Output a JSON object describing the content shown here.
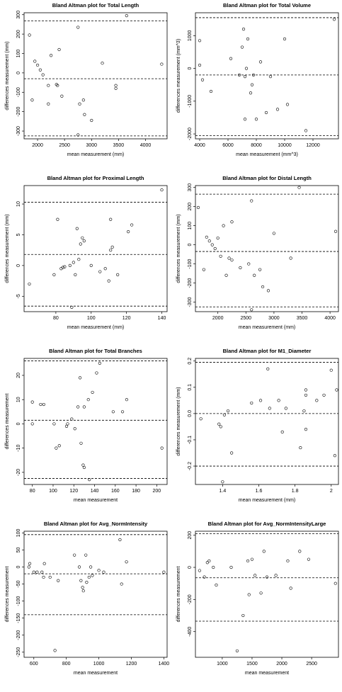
{
  "chart_data": [
    {
      "type": "scatter",
      "title": "Bland Altman plot for Total Length",
      "x_label": "mean measurement (mm)",
      "y_label": "differences measurement (mm)",
      "x": [
        1850,
        1900,
        1950,
        2000,
        2050,
        2100,
        2200,
        2200,
        2250,
        2350,
        2370,
        2400,
        2450,
        2750,
        2750,
        2780,
        2850,
        2870,
        3000,
        3200,
        3450,
        3450,
        3650,
        4300
      ],
      "values": [
        195,
        -140,
        60,
        40,
        15,
        -10,
        -65,
        -160,
        90,
        -60,
        -65,
        120,
        -120,
        235,
        -320,
        -160,
        -140,
        -215,
        -245,
        50,
        -65,
        -80,
        295,
        45
      ],
      "xlim": [
        1750,
        4400
      ],
      "ylim": [
        -340,
        310
      ],
      "xticks": [
        2000,
        2500,
        3000,
        3500,
        4000
      ],
      "yticks": [
        -300,
        -200,
        -100,
        0,
        100,
        200,
        300
      ],
      "hlines": [
        268,
        -30,
        -325
      ]
    },
    {
      "type": "scatter",
      "title": "Bland Altman plot for Total Volume",
      "x_label": "mean measurement (mm^3)",
      "y_label": "differences measurement (mm^3)",
      "x": [
        4000,
        4000,
        4200,
        4800,
        6200,
        6800,
        7000,
        7100,
        7200,
        7300,
        7400,
        7200,
        7600,
        7700,
        8000,
        8300,
        8700,
        9000,
        9500,
        10000,
        10200,
        11500,
        13500,
        7800
      ],
      "values": [
        850,
        100,
        -350,
        -700,
        300,
        -200,
        650,
        1200,
        -250,
        0,
        900,
        -1550,
        -750,
        -500,
        -1550,
        200,
        -1350,
        -250,
        -1250,
        900,
        -1100,
        -1900,
        1500,
        -200
      ],
      "xlim": [
        3700,
        13800
      ],
      "ylim": [
        -2150,
        1700
      ],
      "xticks": [
        4000,
        6000,
        8000,
        10000,
        12000
      ],
      "yticks": [
        -2000,
        -1000,
        0,
        1000
      ],
      "hlines": [
        1550,
        -200,
        -2050
      ]
    },
    {
      "type": "scatter",
      "title": "Bland Altman plot for Proximal Length",
      "x_label": "mean measurement (mm)",
      "y_label": "differences measurement (mm)",
      "x": [
        65,
        79,
        81,
        83,
        84,
        85,
        88,
        89,
        90,
        91,
        92,
        93,
        94,
        95,
        96,
        100,
        105,
        108,
        110,
        111,
        111,
        112,
        115,
        121,
        123,
        140
      ],
      "values": [
        -3,
        -1.5,
        7.5,
        -0.5,
        -0.3,
        -0.2,
        0,
        -6.8,
        0.5,
        -1.5,
        6,
        1,
        3.5,
        4.5,
        4,
        0,
        -1,
        -0.5,
        -2.5,
        2.5,
        7.5,
        3,
        -1.5,
        5.5,
        6.6,
        12.3
      ],
      "xlim": [
        62,
        143
      ],
      "ylim": [
        -7.5,
        13
      ],
      "xticks": [
        80,
        100,
        120,
        140
      ],
      "yticks": [
        -5,
        0,
        5,
        10
      ],
      "hlines": [
        10.3,
        1.8,
        -6.6
      ]
    },
    {
      "type": "scatter",
      "title": "Bland Altman plot for Distal Length",
      "x_label": "mean measurement (mm)",
      "y_label": "differences measurement (mm)",
      "x": [
        1650,
        1750,
        1800,
        1850,
        1900,
        1950,
        2000,
        2050,
        2100,
        2150,
        2200,
        2250,
        2250,
        2400,
        2550,
        2600,
        2600,
        2650,
        2750,
        2800,
        2900,
        3000,
        3300,
        3450,
        4100
      ],
      "values": [
        195,
        -130,
        40,
        20,
        0,
        -20,
        35,
        -60,
        100,
        -160,
        -70,
        -80,
        120,
        -120,
        -100,
        230,
        -340,
        -160,
        -130,
        -220,
        -240,
        60,
        -70,
        300,
        70
      ],
      "xlim": [
        1600,
        4150
      ],
      "ylim": [
        -350,
        310
      ],
      "xticks": [
        2000,
        2500,
        3000,
        3500,
        4000
      ],
      "yticks": [
        -300,
        -200,
        -100,
        0,
        100,
        200,
        300
      ],
      "hlines": [
        265,
        -35,
        -325
      ]
    },
    {
      "type": "scatter",
      "title": "Bland Altman plot for Total Branches",
      "x_label": "mean measurement",
      "y_label": "differences measurement",
      "x": [
        80,
        80,
        88,
        91,
        101,
        103,
        106,
        113,
        114,
        118,
        121,
        124,
        126,
        127,
        129,
        130,
        130,
        134,
        135,
        138,
        142,
        145,
        158,
        167,
        171,
        205
      ],
      "values": [
        9,
        0,
        8,
        8,
        0,
        -10,
        -9,
        -1,
        0,
        2,
        -2,
        7,
        19,
        -8,
        -17,
        7,
        -18,
        10,
        -23,
        13,
        21,
        25,
        5,
        5,
        10,
        -10
      ],
      "xlim": [
        72,
        210
      ],
      "ylim": [
        -25,
        27
      ],
      "xticks": [
        80,
        100,
        120,
        140,
        160,
        180,
        200
      ],
      "yticks": [
        -20,
        -10,
        0,
        10,
        20
      ],
      "hlines": [
        26,
        1.5,
        -22.5
      ]
    },
    {
      "type": "scatter",
      "title": "Bland Altman plot for M1_Diameter",
      "x_label": "mean measurement (mm)",
      "y_label": "differences measurement (mm)",
      "x": [
        1.28,
        1.38,
        1.39,
        1.4,
        1.41,
        1.43,
        1.45,
        1.56,
        1.61,
        1.65,
        1.66,
        1.71,
        1.73,
        1.75,
        1.83,
        1.85,
        1.86,
        1.86,
        1.86,
        1.92,
        1.96,
        2.0,
        2.02,
        2.03
      ],
      "values": [
        -0.02,
        -0.04,
        -0.05,
        -0.26,
        -0.005,
        0.01,
        -0.15,
        0.04,
        0.05,
        0.17,
        0.02,
        0.05,
        -0.07,
        0.02,
        -0.13,
        0.01,
        0.09,
        0.07,
        -0.06,
        0.05,
        0.07,
        0.165,
        -0.16,
        0.09
      ],
      "xlim": [
        1.25,
        2.04
      ],
      "ylim": [
        -0.27,
        0.21
      ],
      "xticks": [
        1.4,
        1.6,
        1.8,
        2.0
      ],
      "yticks": [
        -0.2,
        -0.1,
        {
          "value": 0,
          "label": "0.0"
        },
        0.1,
        0.2
      ],
      "hlines": [
        0.195,
        0,
        -0.2
      ]
    },
    {
      "type": "scatter",
      "title": "Bland Altman plot for Avg_NormIntensity",
      "x_label": "mean measurement",
      "y_label": "differences measurement",
      "x": [
        570,
        575,
        600,
        620,
        650,
        660,
        665,
        700,
        730,
        750,
        850,
        880,
        890,
        900,
        905,
        920,
        925,
        940,
        950,
        960,
        1000,
        1030,
        1130,
        1140,
        1170,
        1400
      ],
      "values": [
        0,
        10,
        -15,
        -15,
        -15,
        -30,
        10,
        -30,
        -245,
        -40,
        35,
        0,
        -40,
        -60,
        -70,
        35,
        -45,
        -30,
        0,
        -25,
        -10,
        -15,
        80,
        -50,
        15,
        -15
      ],
      "xlim": [
        540,
        1420
      ],
      "ylim": [
        -265,
        105
      ],
      "xticks": [
        600,
        800,
        1000,
        1200,
        1400
      ],
      "yticks": [
        -250,
        -200,
        -150,
        -100,
        -50,
        0,
        50,
        100
      ],
      "hlines": [
        95,
        -20,
        -140
      ]
    },
    {
      "type": "scatter",
      "title": "Bland Altman plot for Avg_NormIntensityLarge",
      "x_label": "mean measurement",
      "y_label": "differences measurement",
      "x": [
        620,
        700,
        750,
        780,
        850,
        900,
        1150,
        1250,
        1350,
        1430,
        1450,
        1500,
        1550,
        1650,
        1700,
        1750,
        1900,
        2100,
        2150,
        2300,
        2450,
        2900
      ],
      "values": [
        -20,
        -60,
        30,
        40,
        0,
        -110,
        0,
        -520,
        -300,
        40,
        -170,
        50,
        -50,
        -160,
        100,
        -60,
        -50,
        40,
        -130,
        100,
        50,
        -100
      ],
      "xlim": [
        550,
        2950
      ],
      "ylim": [
        -560,
        225
      ],
      "xticks": [
        1000,
        1500,
        2000,
        2500
      ],
      "yticks": [
        -400,
        -200,
        0,
        200
      ],
      "hlines": [
        210,
        -65,
        -335
      ]
    }
  ]
}
